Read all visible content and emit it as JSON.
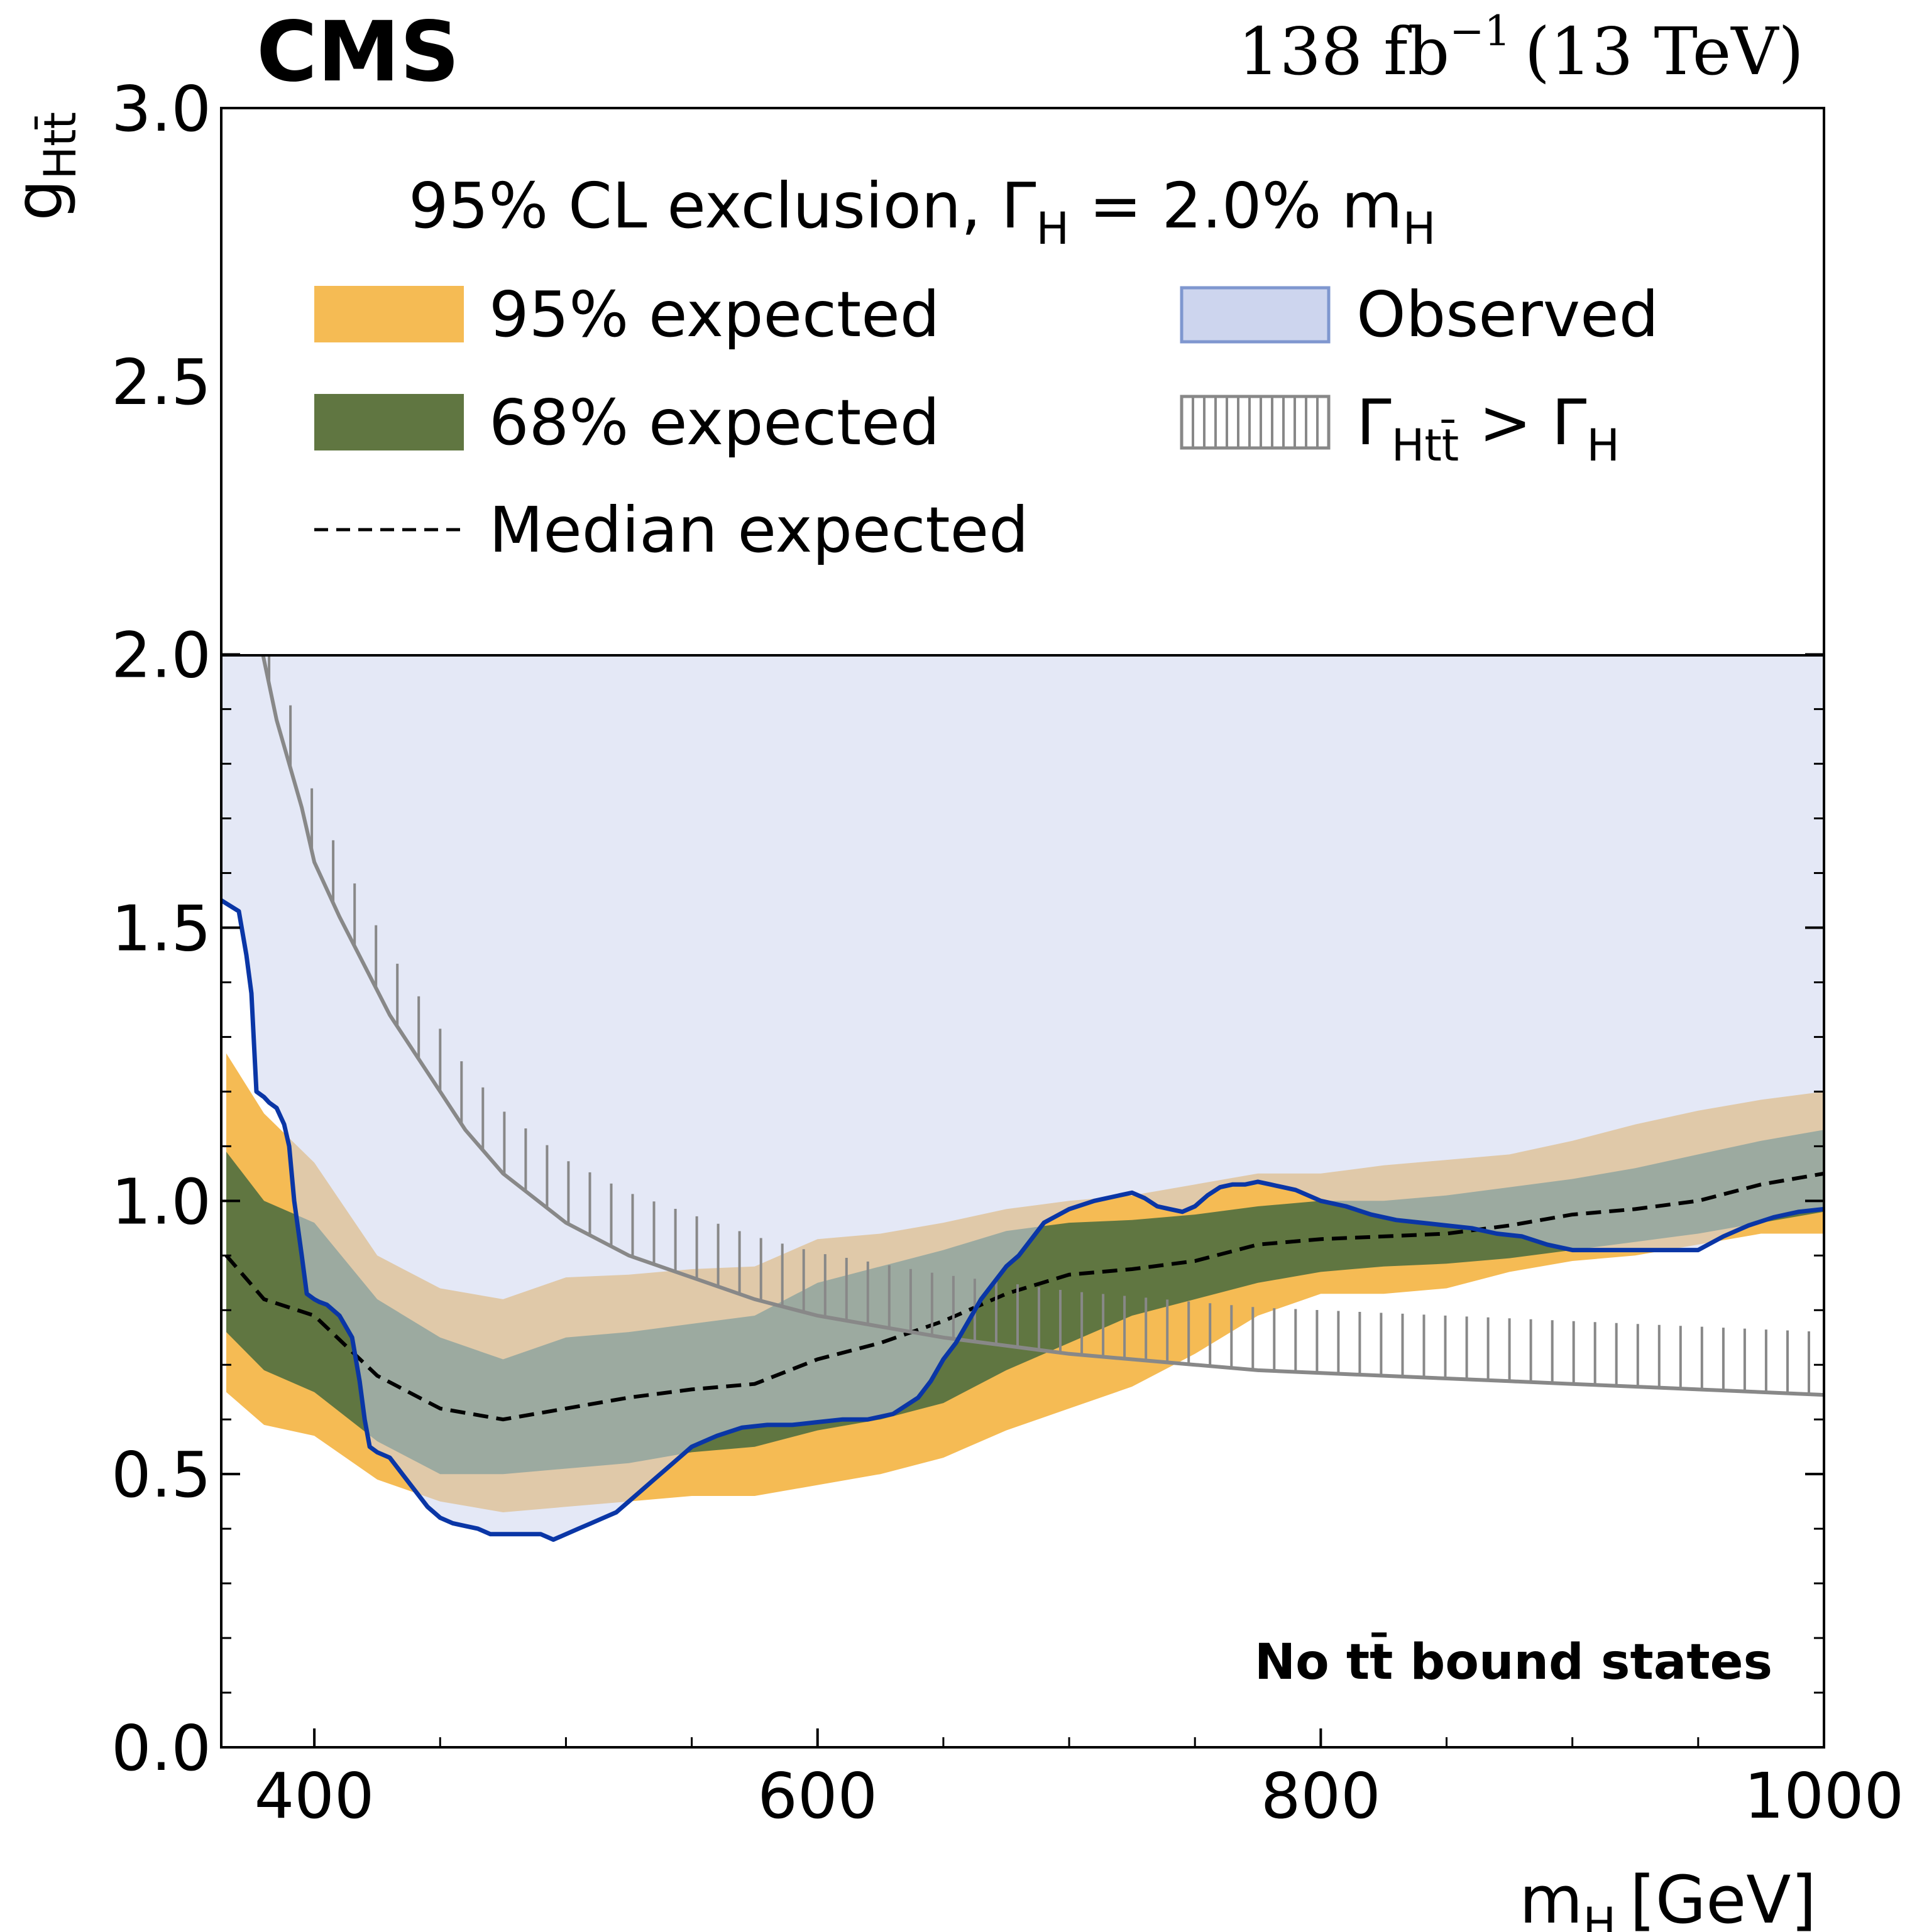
{
  "chart_data": {
    "type": "line",
    "experiment": "CMS",
    "lumi_text": "138 fb",
    "lumi_exponent": "−1",
    "energy_text": "(13 TeV)",
    "xlabel": "m",
    "xlabel_sub": "H",
    "xlabel_unit": "[GeV]",
    "ylabel": "g",
    "ylabel_sub": "Htt̄",
    "xlim": [
      363,
      1000
    ],
    "ylim": [
      0.0,
      3.0
    ],
    "plot_region_ymax": 2.0,
    "x_ticks": [
      400,
      600,
      800,
      1000
    ],
    "x_tick_labels": [
      "400",
      "600",
      "800",
      "1000"
    ],
    "y_ticks": [
      0.0,
      0.5,
      1.0,
      1.5,
      2.0,
      2.5,
      3.0
    ],
    "y_tick_labels": [
      "0.0",
      "0.5",
      "1.0",
      "1.5",
      "2.0",
      "2.5",
      "3.0"
    ],
    "legend_title_main": "95% CL exclusion, Γ",
    "legend_title_sub": "H",
    "legend_title_rest": " =  2.0% m",
    "legend_title_sub2": "H",
    "legend": {
      "expected95": "95% expected",
      "expected68": "68% expected",
      "median": "Median expected",
      "observed": "Observed",
      "width_main": "Γ",
      "width_sub": "Htt̄",
      "width_rest": " > Γ",
      "width_sub2": "H"
    },
    "annotation": "No tt̄ bound states",
    "colors": {
      "band95": "#f5bb54",
      "band68": "#607641",
      "observed_fill": "#cdd5ee",
      "observed_line": "#0a36a6",
      "median": "#000000",
      "width_line": "#888888",
      "band95_over": "#c9a46c",
      "band68_over": "#566d5e"
    },
    "series": [
      {
        "name": "Median expected",
        "x": [
          365,
          380,
          400,
          425,
          450,
          475,
          500,
          525,
          550,
          575,
          600,
          625,
          650,
          675,
          700,
          725,
          750,
          775,
          800,
          825,
          850,
          875,
          900,
          925,
          950,
          975,
          1000
        ],
        "values": [
          0.9,
          0.82,
          0.79,
          0.68,
          0.62,
          0.6,
          0.62,
          0.64,
          0.655,
          0.665,
          0.71,
          0.74,
          0.78,
          0.83,
          0.865,
          0.875,
          0.89,
          0.92,
          0.93,
          0.935,
          0.94,
          0.955,
          0.975,
          0.985,
          1.0,
          1.03,
          1.05
        ]
      },
      {
        "name": "68% expected",
        "x": [
          365,
          380,
          400,
          425,
          450,
          475,
          500,
          525,
          550,
          575,
          600,
          625,
          650,
          675,
          700,
          725,
          750,
          775,
          800,
          825,
          850,
          875,
          900,
          925,
          950,
          975,
          1000
        ],
        "low": [
          0.76,
          0.69,
          0.65,
          0.56,
          0.5,
          0.5,
          0.51,
          0.52,
          0.54,
          0.55,
          0.58,
          0.6,
          0.63,
          0.69,
          0.74,
          0.79,
          0.82,
          0.85,
          0.87,
          0.88,
          0.885,
          0.895,
          0.91,
          0.925,
          0.94,
          0.96,
          0.98
        ],
        "high": [
          1.09,
          1.0,
          0.96,
          0.82,
          0.75,
          0.71,
          0.75,
          0.76,
          0.775,
          0.79,
          0.85,
          0.88,
          0.91,
          0.945,
          0.96,
          0.965,
          0.975,
          0.99,
          1.0,
          1.0,
          1.01,
          1.025,
          1.04,
          1.06,
          1.085,
          1.11,
          1.13
        ]
      },
      {
        "name": "95% expected",
        "x": [
          365,
          380,
          400,
          425,
          450,
          475,
          500,
          525,
          550,
          575,
          600,
          625,
          650,
          675,
          700,
          725,
          750,
          775,
          800,
          825,
          850,
          875,
          900,
          925,
          950,
          975,
          1000
        ],
        "low": [
          0.65,
          0.59,
          0.57,
          0.49,
          0.45,
          0.43,
          0.44,
          0.45,
          0.46,
          0.46,
          0.48,
          0.5,
          0.53,
          0.58,
          0.62,
          0.66,
          0.72,
          0.79,
          0.83,
          0.83,
          0.84,
          0.87,
          0.89,
          0.9,
          0.92,
          0.94,
          0.94
        ],
        "high": [
          1.27,
          1.16,
          1.07,
          0.9,
          0.84,
          0.82,
          0.86,
          0.865,
          0.875,
          0.88,
          0.93,
          0.94,
          0.96,
          0.985,
          1.0,
          1.01,
          1.03,
          1.05,
          1.05,
          1.065,
          1.075,
          1.085,
          1.11,
          1.14,
          1.165,
          1.185,
          1.2
        ]
      },
      {
        "name": "Observed",
        "x": [
          363,
          370,
          373,
          375,
          377,
          380,
          382,
          385,
          388,
          390,
          392,
          395,
          397,
          400,
          402,
          405,
          410,
          415,
          418,
          420,
          422,
          425,
          430,
          435,
          440,
          445,
          450,
          455,
          460,
          465,
          470,
          480,
          490,
          495,
          500,
          505,
          510,
          515,
          520,
          525,
          530,
          535,
          540,
          545,
          550,
          560,
          570,
          580,
          590,
          600,
          610,
          620,
          630,
          640,
          645,
          650,
          655,
          660,
          665,
          670,
          675,
          680,
          685,
          690,
          700,
          710,
          720,
          725,
          730,
          735,
          740,
          745,
          750,
          755,
          760,
          765,
          770,
          775,
          780,
          785,
          790,
          800,
          810,
          820,
          830,
          840,
          850,
          860,
          870,
          880,
          890,
          900,
          910,
          920,
          930,
          940,
          950,
          960,
          970,
          980,
          990,
          1000
        ],
        "values": [
          1.55,
          1.53,
          1.45,
          1.38,
          1.2,
          1.19,
          1.18,
          1.17,
          1.14,
          1.1,
          1.0,
          0.9,
          0.83,
          0.82,
          0.815,
          0.81,
          0.79,
          0.75,
          0.67,
          0.6,
          0.55,
          0.54,
          0.53,
          0.5,
          0.47,
          0.44,
          0.42,
          0.41,
          0.405,
          0.4,
          0.39,
          0.39,
          0.39,
          0.38,
          0.39,
          0.4,
          0.41,
          0.42,
          0.43,
          0.45,
          0.47,
          0.49,
          0.51,
          0.53,
          0.55,
          0.57,
          0.585,
          0.59,
          0.59,
          0.595,
          0.6,
          0.6,
          0.61,
          0.64,
          0.67,
          0.71,
          0.74,
          0.78,
          0.82,
          0.85,
          0.88,
          0.9,
          0.93,
          0.96,
          0.985,
          1.0,
          1.01,
          1.015,
          1.005,
          0.99,
          0.985,
          0.98,
          0.99,
          1.01,
          1.025,
          1.03,
          1.03,
          1.035,
          1.03,
          1.025,
          1.02,
          1.0,
          0.99,
          0.975,
          0.965,
          0.96,
          0.955,
          0.95,
          0.94,
          0.935,
          0.92,
          0.91,
          0.91,
          0.91,
          0.91,
          0.91,
          0.91,
          0.935,
          0.955,
          0.97,
          0.98,
          0.985
        ]
      },
      {
        "name": "Width boundary",
        "x": [
          375,
          385,
          395,
          400,
          410,
          420,
          430,
          440,
          450,
          460,
          475,
          500,
          525,
          550,
          575,
          600,
          625,
          650,
          675,
          700,
          725,
          750,
          775,
          800,
          825,
          850,
          875,
          900,
          925,
          950,
          975,
          1000
        ],
        "values": [
          2.1,
          1.88,
          1.72,
          1.62,
          1.52,
          1.43,
          1.34,
          1.27,
          1.2,
          1.13,
          1.05,
          0.96,
          0.9,
          0.86,
          0.82,
          0.79,
          0.77,
          0.75,
          0.735,
          0.72,
          0.71,
          0.7,
          0.69,
          0.685,
          0.68,
          0.675,
          0.67,
          0.665,
          0.66,
          0.655,
          0.65,
          0.645
        ]
      }
    ]
  }
}
